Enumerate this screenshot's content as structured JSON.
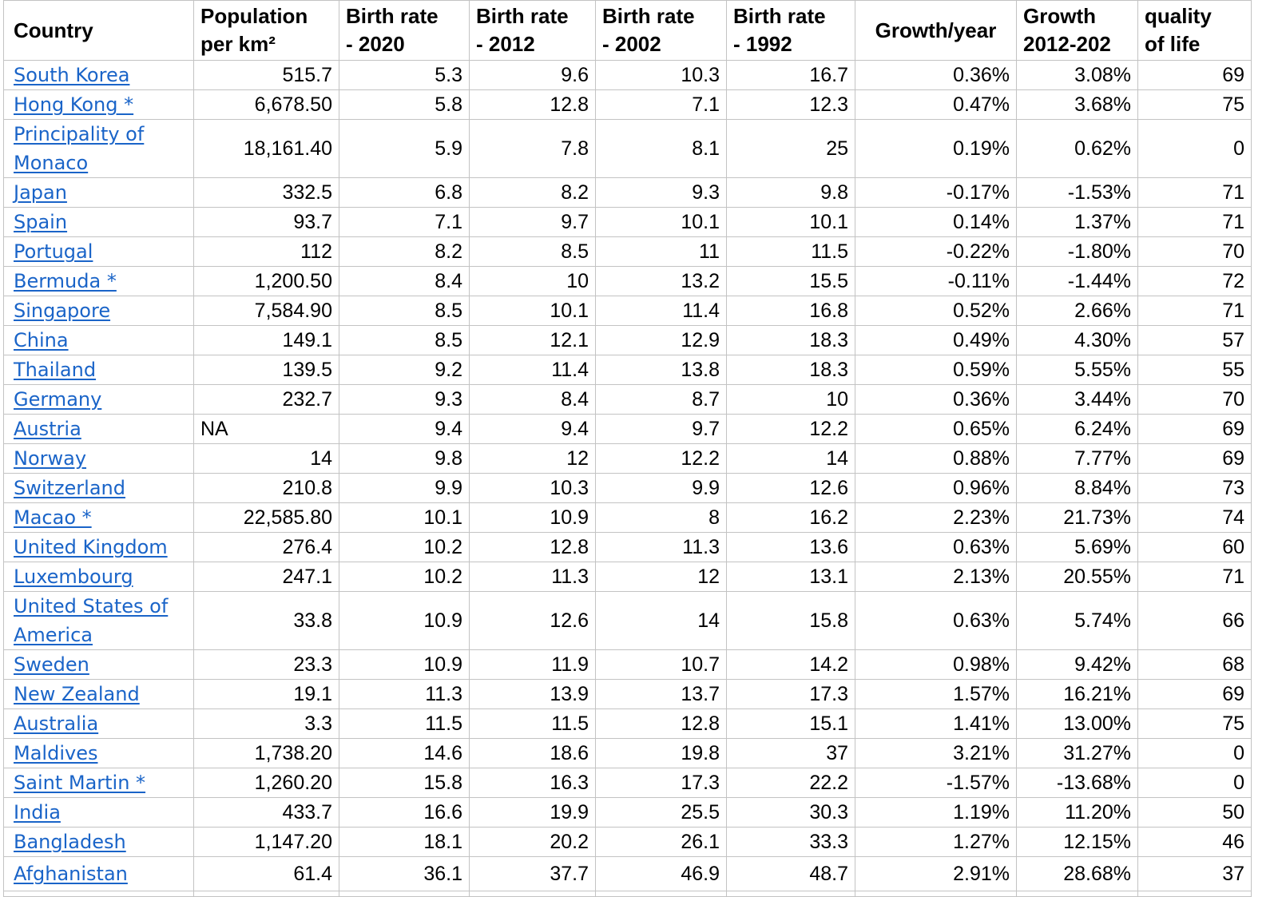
{
  "headers": {
    "country": "Country",
    "population": [
      "Population",
      "per km²"
    ],
    "birth_2020": [
      "Birth rate",
      "- 2020"
    ],
    "birth_2012": [
      "Birth rate",
      "- 2012"
    ],
    "birth_2002": [
      "Birth rate",
      "- 2002"
    ],
    "birth_1992": [
      "Birth rate",
      "- 1992"
    ],
    "growth_year": "Growth/year",
    "growth_2012": [
      "Growth",
      "2012-202"
    ],
    "quality": [
      "quality",
      "of life"
    ]
  },
  "rows": [
    {
      "country": "South Korea",
      "population": "515.7",
      "b2020": "5.3",
      "b2012": "9.6",
      "b2002": "10.3",
      "b1992": "16.7",
      "growth_year": "0.36%",
      "growth_2012": "3.08%",
      "quality": "69"
    },
    {
      "country": "Hong Kong *",
      "population": "6,678.50",
      "b2020": "5.8",
      "b2012": "12.8",
      "b2002": "7.1",
      "b1992": "12.3",
      "growth_year": "0.47%",
      "growth_2012": "3.68%",
      "quality": "75"
    },
    {
      "country": "Principality of Monaco",
      "population": "18,161.40",
      "b2020": "5.9",
      "b2012": "7.8",
      "b2002": "8.1",
      "b1992": "25",
      "growth_year": "0.19%",
      "growth_2012": "0.62%",
      "quality": "0"
    },
    {
      "country": "Japan",
      "population": "332.5",
      "b2020": "6.8",
      "b2012": "8.2",
      "b2002": "9.3",
      "b1992": "9.8",
      "growth_year": "-0.17%",
      "growth_2012": "-1.53%",
      "quality": "71"
    },
    {
      "country": "Spain",
      "population": "93.7",
      "b2020": "7.1",
      "b2012": "9.7",
      "b2002": "10.1",
      "b1992": "10.1",
      "growth_year": "0.14%",
      "growth_2012": "1.37%",
      "quality": "71"
    },
    {
      "country": "Portugal",
      "population": "112",
      "b2020": "8.2",
      "b2012": "8.5",
      "b2002": "11",
      "b1992": "11.5",
      "growth_year": "-0.22%",
      "growth_2012": "-1.80%",
      "quality": "70"
    },
    {
      "country": "Bermuda *",
      "population": "1,200.50",
      "b2020": "8.4",
      "b2012": "10",
      "b2002": "13.2",
      "b1992": "15.5",
      "growth_year": "-0.11%",
      "growth_2012": "-1.44%",
      "quality": "72"
    },
    {
      "country": "Singapore",
      "population": "7,584.90",
      "b2020": "8.5",
      "b2012": "10.1",
      "b2002": "11.4",
      "b1992": "16.8",
      "growth_year": "0.52%",
      "growth_2012": "2.66%",
      "quality": "71"
    },
    {
      "country": "China",
      "population": "149.1",
      "b2020": "8.5",
      "b2012": "12.1",
      "b2002": "12.9",
      "b1992": "18.3",
      "growth_year": "0.49%",
      "growth_2012": "4.30%",
      "quality": "57"
    },
    {
      "country": "Thailand",
      "population": "139.5",
      "b2020": "9.2",
      "b2012": "11.4",
      "b2002": "13.8",
      "b1992": "18.3",
      "growth_year": "0.59%",
      "growth_2012": "5.55%",
      "quality": "55"
    },
    {
      "country": "Germany",
      "population": "232.7",
      "b2020": "9.3",
      "b2012": "8.4",
      "b2002": "8.7",
      "b1992": "10",
      "growth_year": "0.36%",
      "growth_2012": "3.44%",
      "quality": "70"
    },
    {
      "country": "Austria",
      "population": "NA",
      "b2020": "9.4",
      "b2012": "9.4",
      "b2002": "9.7",
      "b1992": "12.2",
      "growth_year": "0.65%",
      "growth_2012": "6.24%",
      "quality": "69"
    },
    {
      "country": "Norway",
      "population": "14",
      "b2020": "9.8",
      "b2012": "12",
      "b2002": "12.2",
      "b1992": "14",
      "growth_year": "0.88%",
      "growth_2012": "7.77%",
      "quality": "69"
    },
    {
      "country": "Switzerland",
      "population": "210.8",
      "b2020": "9.9",
      "b2012": "10.3",
      "b2002": "9.9",
      "b1992": "12.6",
      "growth_year": "0.96%",
      "growth_2012": "8.84%",
      "quality": "73"
    },
    {
      "country": "Macao *",
      "population": "22,585.80",
      "b2020": "10.1",
      "b2012": "10.9",
      "b2002": "8",
      "b1992": "16.2",
      "growth_year": "2.23%",
      "growth_2012": "21.73%",
      "quality": "74"
    },
    {
      "country": "United Kingdom",
      "population": "276.4",
      "b2020": "10.2",
      "b2012": "12.8",
      "b2002": "11.3",
      "b1992": "13.6",
      "growth_year": "0.63%",
      "growth_2012": "5.69%",
      "quality": "60"
    },
    {
      "country": "Luxembourg",
      "population": "247.1",
      "b2020": "10.2",
      "b2012": "11.3",
      "b2002": "12",
      "b1992": "13.1",
      "growth_year": "2.13%",
      "growth_2012": "20.55%",
      "quality": "71"
    },
    {
      "country": "United States of America",
      "population": "33.8",
      "b2020": "10.9",
      "b2012": "12.6",
      "b2002": "14",
      "b1992": "15.8",
      "growth_year": "0.63%",
      "growth_2012": "5.74%",
      "quality": "66"
    },
    {
      "country": "Sweden",
      "population": "23.3",
      "b2020": "10.9",
      "b2012": "11.9",
      "b2002": "10.7",
      "b1992": "14.2",
      "growth_year": "0.98%",
      "growth_2012": "9.42%",
      "quality": "68"
    },
    {
      "country": "New Zealand",
      "population": "19.1",
      "b2020": "11.3",
      "b2012": "13.9",
      "b2002": "13.7",
      "b1992": "17.3",
      "growth_year": "1.57%",
      "growth_2012": "16.21%",
      "quality": "69"
    },
    {
      "country": "Australia",
      "population": "3.3",
      "b2020": "11.5",
      "b2012": "11.5",
      "b2002": "12.8",
      "b1992": "15.1",
      "growth_year": "1.41%",
      "growth_2012": "13.00%",
      "quality": "75"
    },
    {
      "country": "Maldives",
      "population": "1,738.20",
      "b2020": "14.6",
      "b2012": "18.6",
      "b2002": "19.8",
      "b1992": "37",
      "growth_year": "3.21%",
      "growth_2012": "31.27%",
      "quality": "0"
    },
    {
      "country": "Saint Martin *",
      "population": "1,260.20",
      "b2020": "15.8",
      "b2012": "16.3",
      "b2002": "17.3",
      "b1992": "22.2",
      "growth_year": "-1.57%",
      "growth_2012": "-13.68%",
      "quality": "0"
    },
    {
      "country": "India",
      "population": "433.7",
      "b2020": "16.6",
      "b2012": "19.9",
      "b2002": "25.5",
      "b1992": "30.3",
      "growth_year": "1.19%",
      "growth_2012": "11.20%",
      "quality": "50"
    },
    {
      "country": "Bangladesh",
      "population": "1,147.20",
      "b2020": "18.1",
      "b2012": "20.2",
      "b2002": "26.1",
      "b1992": "33.3",
      "growth_year": "1.27%",
      "growth_2012": "12.15%",
      "quality": "46"
    },
    {
      "country": "Afghanistan",
      "population": "61.4",
      "b2020": "36.1",
      "b2012": "37.7",
      "b2002": "46.9",
      "b1992": "48.7",
      "growth_year": "2.91%",
      "growth_2012": "28.68%",
      "quality": "37"
    }
  ],
  "colors": {
    "link": "#1a64c8",
    "grid": "#c3c3c3",
    "text": "#000000"
  }
}
